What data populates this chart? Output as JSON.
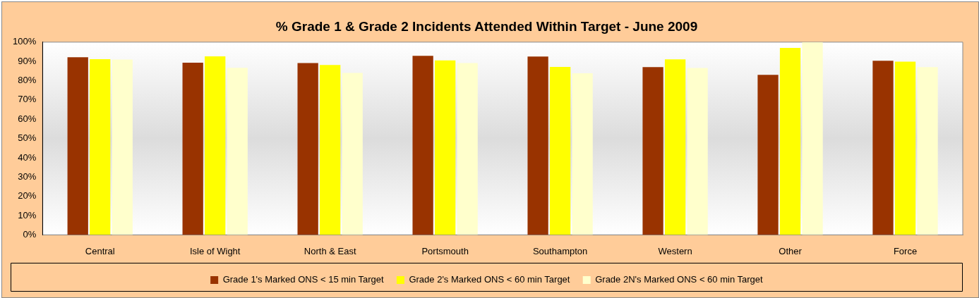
{
  "chart_data": {
    "type": "bar",
    "title": "% Grade 1 & Grade 2 Incidents Attended Within Target - June 2009",
    "categories": [
      "Central",
      "Isle of Wight",
      "North & East",
      "Portsmouth",
      "Southampton",
      "Western",
      "Other",
      "Force"
    ],
    "series": [
      {
        "name": "Grade 1's Marked ONS < 15 min Target",
        "color": "#993300",
        "values": [
          92.2,
          89.3,
          89.1,
          92.9,
          92.5,
          87,
          83,
          90.3
        ]
      },
      {
        "name": "Grade 2's Marked ONS < 60 min Target",
        "color": "#ffff00",
        "values": [
          91.2,
          92.6,
          88.1,
          90.5,
          87.1,
          91.1,
          97,
          89.9
        ]
      },
      {
        "name": "Grade 2N's Marked ONS < 60 min Target",
        "color": "#ffffcc",
        "values": [
          91,
          86.7,
          84,
          89.1,
          83.8,
          86.6,
          100,
          87
        ]
      }
    ],
    "ylim": [
      0,
      100
    ],
    "yticks": [
      {
        "value": 0,
        "label": "0%"
      },
      {
        "value": 10,
        "label": "10%"
      },
      {
        "value": 20,
        "label": "20%"
      },
      {
        "value": 30,
        "label": "30%"
      },
      {
        "value": 40,
        "label": "40%"
      },
      {
        "value": 50,
        "label": "50%"
      },
      {
        "value": 60,
        "label": "60%"
      },
      {
        "value": 70,
        "label": "70%"
      },
      {
        "value": 80,
        "label": "80%"
      },
      {
        "value": 90,
        "label": "90%"
      },
      {
        "value": 100,
        "label": "100%"
      }
    ],
    "grid": false,
    "legend": "bottom"
  }
}
